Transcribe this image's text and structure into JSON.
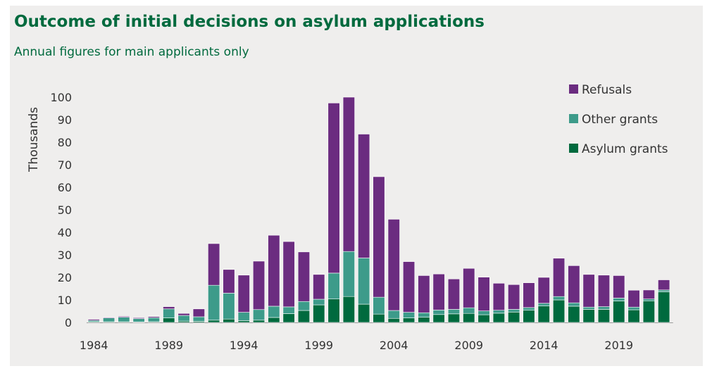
{
  "colors": {
    "background": "#efeeed",
    "title": "#006a3e",
    "refusals": "#6b2c80",
    "other_grants": "#3d9b8a",
    "asylum_grants": "#006a3e"
  },
  "chart_data": {
    "type": "bar",
    "stacked": true,
    "title": "Outcome of initial decisions on asylum applications",
    "subtitle": "Annual figures for main applicants only",
    "ylabel": "Thousands",
    "xlabel": "",
    "ylim": [
      0,
      100
    ],
    "yticks": [
      0,
      10,
      20,
      30,
      40,
      50,
      60,
      70,
      80,
      90,
      100
    ],
    "xtick_labels": [
      "1984",
      "1989",
      "1994",
      "1999",
      "2004",
      "2009",
      "2014",
      "2019"
    ],
    "legend_position": "top-right",
    "categories": [
      "1984",
      "1985",
      "1986",
      "1987",
      "1988",
      "1989",
      "1990",
      "1991",
      "1992",
      "1993",
      "1994",
      "1995",
      "1996",
      "1997",
      "1998",
      "1999",
      "2000",
      "2001",
      "2002",
      "2003",
      "2004",
      "2005",
      "2006",
      "2007",
      "2008",
      "2009",
      "2010",
      "2011",
      "2012",
      "2013",
      "2014",
      "2015",
      "2016",
      "2017",
      "2018",
      "2019",
      "2020",
      "2021",
      "2022"
    ],
    "series": [
      {
        "name": "Refusals",
        "color": "#6b2c80",
        "values": [
          0.5,
          0.3,
          0.4,
          0.4,
          0.5,
          1.0,
          0.9,
          3.5,
          18.5,
          10.5,
          16.5,
          21.5,
          31.5,
          29.0,
          22.0,
          11.0,
          75.5,
          68.5,
          55.0,
          53.5,
          40.5,
          22.5,
          16.5,
          16.0,
          13.5,
          17.5,
          15.0,
          12.0,
          11.0,
          11.0,
          11.5,
          17.0,
          16.5,
          14.5,
          14.0,
          10.0,
          7.5,
          4.0,
          4.5
        ]
      },
      {
        "name": "Other grants",
        "color": "#3d9b8a",
        "values": [
          0.6,
          1.7,
          2.0,
          1.5,
          1.8,
          4.0,
          2.5,
          2.0,
          15.5,
          11.5,
          3.7,
          4.7,
          5.0,
          3.0,
          4.0,
          2.5,
          11.5,
          20.0,
          20.5,
          7.5,
          3.5,
          2.5,
          2.0,
          2.0,
          2.0,
          2.5,
          1.7,
          1.3,
          1.2,
          1.2,
          1.2,
          1.5,
          1.5,
          1.0,
          1.2,
          1.3,
          1.2,
          0.8,
          0.8
        ]
      },
      {
        "name": "Asylum grants",
        "color": "#006a3e",
        "values": [
          0.3,
          0.3,
          0.3,
          0.2,
          0.3,
          2.0,
          0.6,
          0.5,
          1.0,
          1.5,
          0.8,
          1.0,
          2.2,
          3.9,
          5.3,
          7.8,
          10.4,
          11.5,
          8.1,
          3.7,
          1.8,
          2.0,
          2.3,
          3.5,
          3.8,
          4.0,
          3.4,
          4.1,
          4.6,
          5.4,
          7.3,
          10.0,
          7.2,
          5.8,
          5.8,
          9.5,
          5.6,
          9.6,
          13.6
        ]
      }
    ]
  }
}
